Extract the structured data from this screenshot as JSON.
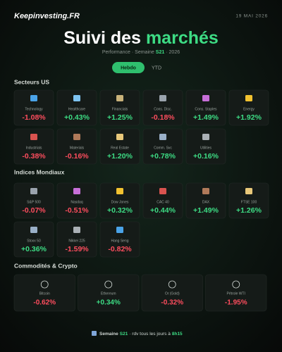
{
  "header": {
    "logo": "Keepinvesting.FR",
    "date": "19 MAI 2026"
  },
  "title": {
    "part1": "Suivi des",
    "part2": "marchés"
  },
  "subtitle": {
    "prefix": "Performance · Semaine",
    "week": "S21",
    "suffix": "· 2026"
  },
  "tabs": [
    "Hebdo",
    "YTD"
  ],
  "sections": [
    {
      "title": "Secteurs US",
      "items": [
        {
          "name": "Technology",
          "change": "-1.08%"
        },
        {
          "name": "Healthcare",
          "change": "+0.43%"
        },
        {
          "name": "Financials",
          "change": "+1.25%"
        },
        {
          "name": "Cons. Disc.",
          "change": "-0.18%"
        },
        {
          "name": "Cons. Staples",
          "change": "+1.49%"
        },
        {
          "name": "Energy",
          "change": "+1.92%"
        },
        {
          "name": "Industrials",
          "change": "-0.38%"
        },
        {
          "name": "Materials",
          "change": "-0.16%"
        },
        {
          "name": "Real Estate",
          "change": "+1.20%"
        },
        {
          "name": "Comm. Svc",
          "change": "+0.78%"
        },
        {
          "name": "Utilities",
          "change": "+0.16%"
        }
      ]
    },
    {
      "title": "Indices Mondiaux",
      "items": [
        {
          "name": "S&P 500",
          "change": "-0.07%"
        },
        {
          "name": "Nasdaq",
          "change": "-0.51%"
        },
        {
          "name": "Dow Jones",
          "change": "+0.32%"
        },
        {
          "name": "CAC 40",
          "change": "+0.44%"
        },
        {
          "name": "DAX",
          "change": "+1.49%"
        },
        {
          "name": "FTSE 100",
          "change": "+1.26%"
        },
        {
          "name": "Stoxx 50",
          "change": "+0.36%"
        },
        {
          "name": "Nikkei 225",
          "change": "-1.59%"
        },
        {
          "name": "Hang Seng",
          "change": "-0.82%"
        }
      ]
    },
    {
      "title": "Commodités & Crypto",
      "items": [
        {
          "name": "Bitcoin",
          "change": "-0.62%"
        },
        {
          "name": "Ethereum",
          "change": "+0.34%"
        },
        {
          "name": "Or (Gold)",
          "change": "-0.32%"
        },
        {
          "name": "Pétrole WTI",
          "change": "-1.95%"
        }
      ]
    }
  ],
  "footer": {
    "prefix": "Semaine",
    "week": "S21",
    "middle": "· rdv tous les jours à",
    "time": "8h15"
  }
}
